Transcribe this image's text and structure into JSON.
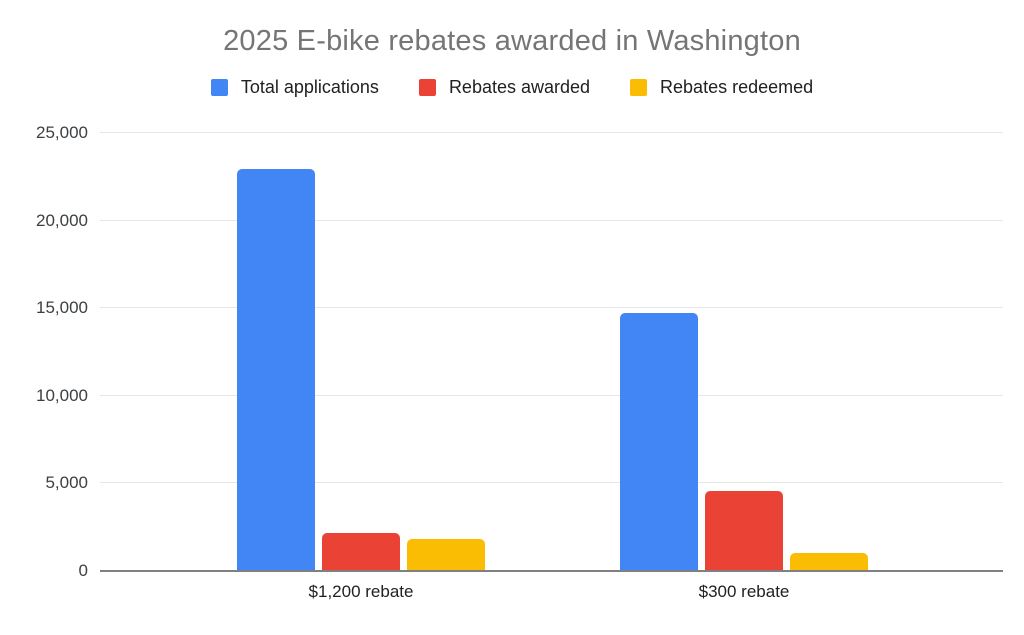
{
  "header": {
    "title": "2025 E-bike rebates awarded in Washington",
    "title_color": "#757575"
  },
  "chart_data": {
    "type": "bar",
    "title": "2025 E-bike rebates awarded in Washington",
    "categories": [
      "$1,200 rebate",
      "$300 rebate"
    ],
    "series": [
      {
        "name": "Total applications",
        "color": "#4285F4",
        "values": [
          22900,
          14700
        ]
      },
      {
        "name": "Rebates awarded",
        "color": "#EA4335",
        "values": [
          2100,
          4500
        ]
      },
      {
        "name": "Rebates redeemed",
        "color": "#FBBC04",
        "values": [
          1800,
          1000
        ]
      }
    ],
    "xlabel": "",
    "ylabel": "",
    "ylim": [
      0,
      25000
    ],
    "y_tick_labels": [
      "0",
      "5,000",
      "10,000",
      "15,000",
      "20,000",
      "25,000"
    ],
    "grid": true,
    "legend_position": "top",
    "background": "#ffffff",
    "gridline_color": "#e6e6e6",
    "axis_line_color": "#808080",
    "tick_text_color": "#3c4043",
    "category_text_color": "#202124",
    "legend_text_color": "#212121"
  }
}
